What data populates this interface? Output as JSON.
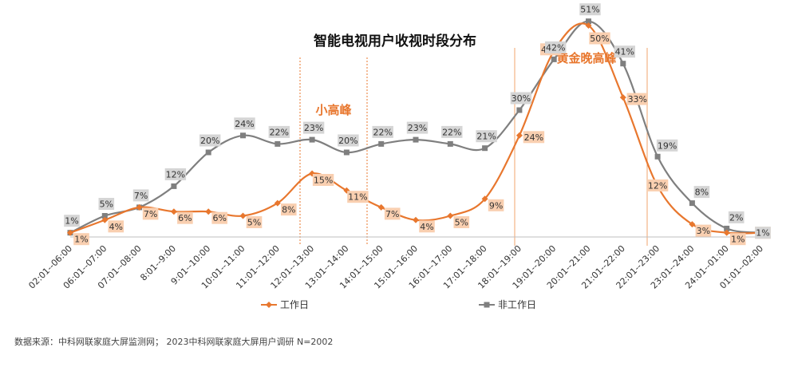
{
  "chart_data": {
    "type": "line",
    "title": "智能电视用户收视时段分布",
    "categories": [
      "02:01--06:00",
      "06:01--07:00",
      "07:01--08:00",
      "8:01--9:00",
      "9:01--10:00",
      "10:01--11:00",
      "11:01--12:00",
      "12:01--13:00",
      "13:01--14:00",
      "14:01--15:00",
      "15:01--16:00",
      "16:01--17:00",
      "17:01--18:00",
      "18:01--19:00",
      "19:01--20:00",
      "20:01--21:00",
      "21:01--22:00",
      "22:01--23:00",
      "23:01--24:00",
      "24:01--01:00",
      "01:01--02:00"
    ],
    "series": [
      {
        "name": "工作日",
        "color": "#E8772E",
        "label_bg": "#F9CFB0",
        "values": [
          1,
          4,
          7,
          6,
          6,
          5,
          8,
          15,
          11,
          7,
          4,
          5,
          9,
          24,
          44,
          50,
          33,
          12,
          3,
          1,
          1
        ]
      },
      {
        "name": "非工作日",
        "color": "#7F7F7F",
        "label_bg": "#D5D5D5",
        "values": [
          1,
          5,
          7,
          12,
          20,
          24,
          22,
          23,
          20,
          22,
          23,
          22,
          21,
          30,
          42,
          51,
          41,
          19,
          8,
          2,
          1
        ]
      }
    ],
    "annotations": {
      "small_peak": "小高峰",
      "golden_peak": "黄金晚高峰"
    },
    "ylim": [
      0,
      55
    ],
    "value_suffix": "%"
  },
  "source_note": "数据来源：中科网联家庭大屏监测网； 2023中科网联家庭大屏用户调研 N=2002"
}
